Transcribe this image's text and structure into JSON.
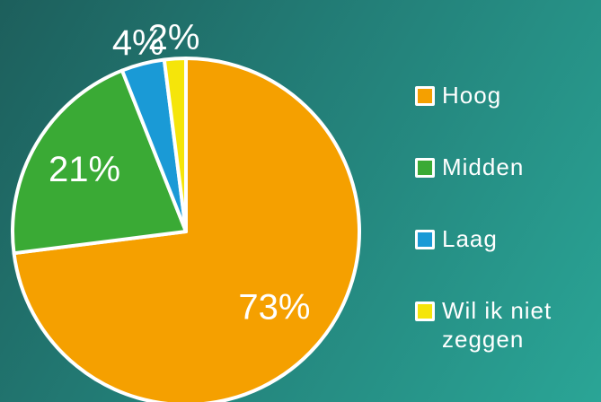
{
  "chart_data": {
    "type": "pie",
    "categories": [
      "Hoog",
      "Midden",
      "Laag",
      "Wil ik niet zeggen"
    ],
    "values": [
      73,
      21,
      4,
      2
    ],
    "value_labels": [
      "73%",
      "21%",
      "4%",
      "2%"
    ],
    "colors": [
      "#f5a000",
      "#3aaa35",
      "#1a9ad6",
      "#f5e50a"
    ]
  }
}
